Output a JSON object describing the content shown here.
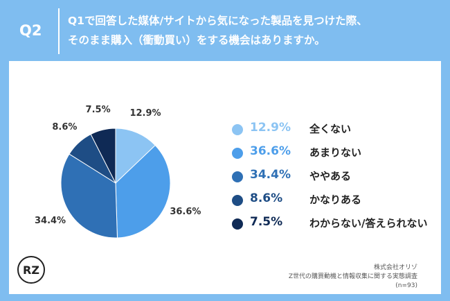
{
  "header": {
    "q_label": "Q2",
    "question_line1": "Q1で回答した媒体/サイトから気になった製品を見つけた際、",
    "question_line2": "そのまま購入（衝動買い）をする機会はありますか。"
  },
  "chart_data": {
    "type": "pie",
    "slices": [
      {
        "label": "全くない",
        "value": 12.9,
        "display": "12.9%",
        "color": "#8cc4f3"
      },
      {
        "label": "あまりない",
        "value": 36.6,
        "display": "36.6%",
        "color": "#4d9eea"
      },
      {
        "label": "ややある",
        "value": 34.4,
        "display": "34.4%",
        "color": "#2f70b5"
      },
      {
        "label": "かなりある",
        "value": 8.6,
        "display": "8.6%",
        "color": "#1e4d85"
      },
      {
        "label": "わからない/答えられない",
        "value": 7.5,
        "display": "7.5%",
        "color": "#0f2a55"
      }
    ]
  },
  "source": {
    "company": "株式会社オリゾ",
    "survey": "Z世代の購買動機と情報収集に関する実態調査",
    "sample": "(n=93)"
  },
  "logo": {
    "text": "RZ"
  }
}
